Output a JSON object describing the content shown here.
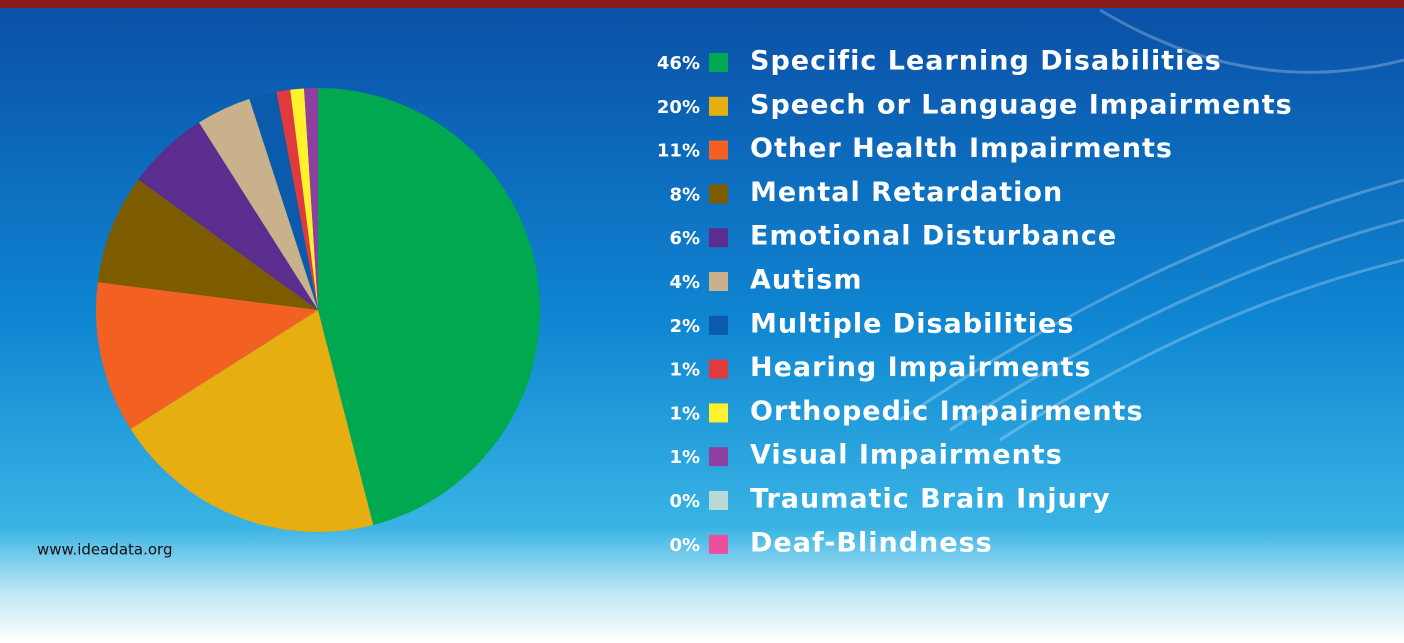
{
  "chart_data": {
    "type": "pie",
    "categories": [
      "Specific Learning Disabilities",
      "Speech or Language Impairments",
      "Other Health Impairments",
      "Mental Retardation",
      "Emotional Disturbance",
      "Autism",
      "Multiple Disabilities",
      "Hearing Impairments",
      "Orthopedic Impairments",
      "Visual Impairments",
      "Traumatic Brain Injury",
      "Deaf-Blindness"
    ],
    "values": [
      46,
      20,
      11,
      8,
      6,
      4,
      2,
      1,
      1,
      1,
      0,
      0
    ],
    "value_labels": [
      "46%",
      "20%",
      "11%",
      "8%",
      "6%",
      "4%",
      "2%",
      "1%",
      "1%",
      "1%",
      "0%",
      "0%"
    ],
    "colors": [
      "#00a84f",
      "#e6ae10",
      "#f26122",
      "#7d5c00",
      "#5b2d8e",
      "#c8b18b",
      "#0a5bab",
      "#e0393e",
      "#fff22d",
      "#8f3fa0",
      "#b9d9d6",
      "#ec4f9c"
    ],
    "source": "www.ideadata.org"
  }
}
